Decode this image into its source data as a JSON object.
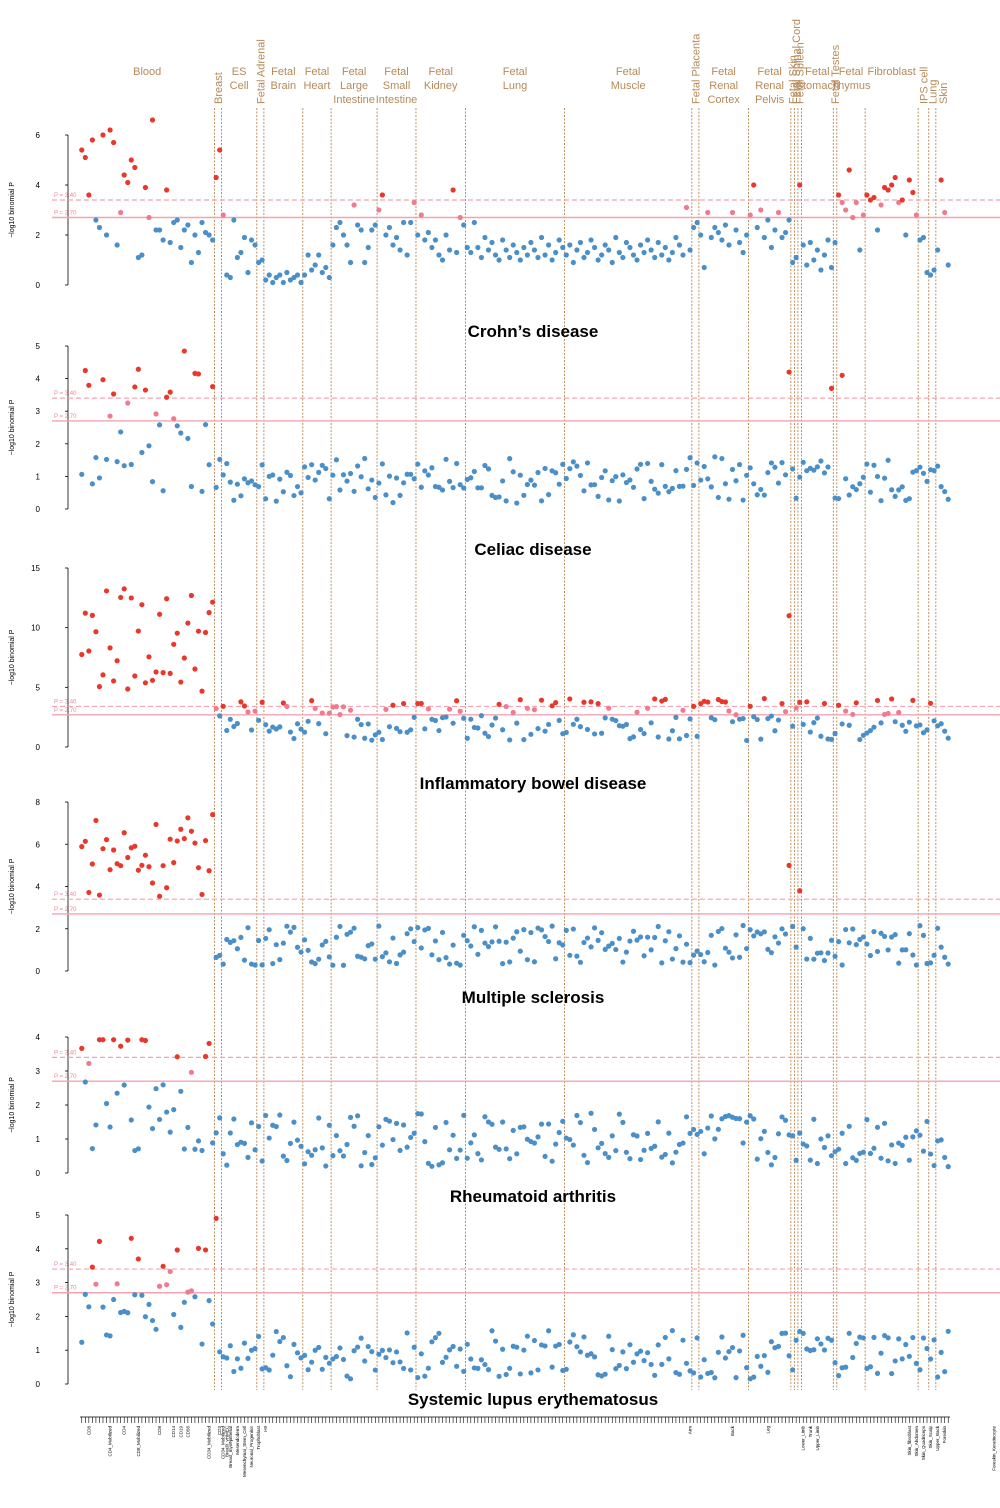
{
  "figure": {
    "y_axis_label": "−log10 binomial P",
    "threshold_labels": [
      "P = 3.40",
      "P = 2.70"
    ],
    "thresholds": [
      3.4,
      2.7
    ],
    "colors": {
      "significant": "#e8382c",
      "suggestive": "#f07a8e",
      "nonsignificant": "#4a8fc8",
      "group_divider": "#b0763a",
      "group_label": "#b58a5a",
      "threshold_line": "#f4a3b0"
    }
  },
  "groups": [
    {
      "label": "Blood",
      "n": 38
    },
    {
      "label": "Breast",
      "n": 2
    },
    {
      "label": "ES Cell",
      "n": 10
    },
    {
      "label": "Fetal Adrenal",
      "n": 2
    },
    {
      "label": "Fetal Brain",
      "n": 11
    },
    {
      "label": "Fetal Heart",
      "n": 8
    },
    {
      "label": "Fetal Large Intestine",
      "n": 13
    },
    {
      "label": "Fetal Small Intestine",
      "n": 11
    },
    {
      "label": "Fetal Kidney",
      "n": 14
    },
    {
      "label": "Fetal Lung",
      "n": 28
    },
    {
      "label": "Fetal Muscle",
      "n": 36
    },
    {
      "label": "Fetal Placenta",
      "n": 2
    },
    {
      "label": "Fetal Renal Cortex",
      "n": 14
    },
    {
      "label": "Fetal Renal Pelvis",
      "n": 12
    },
    {
      "label": "Fetal Skin",
      "n": 1
    },
    {
      "label": "Fetal Spinal Cord",
      "n": 1
    },
    {
      "label": "Fetal Spleen",
      "n": 1
    },
    {
      "label": "Fetal Stomach",
      "n": 9
    },
    {
      "label": "Fetal Testes",
      "n": 1
    },
    {
      "label": "Fetal Thymus",
      "n": 8
    },
    {
      "label": "Fibroblast",
      "n": 15
    },
    {
      "label": "IPS cell",
      "n": 3
    },
    {
      "label": "Lung",
      "n": 2
    },
    {
      "label": "Skin",
      "n": 4
    }
  ],
  "x_tick_labels": [
    "CD8",
    "CD4_Mobilized",
    "CD4",
    "CD8_Mobilized",
    "CD8",
    "CD14",
    "CD19",
    "CD56",
    "CD34_Mobilized",
    "CD3",
    "CD34_Mobilized",
    "Breast_vHMEC",
    "Breast_myoepithelial",
    "Mesendoderm",
    "Mesenchymal_Stem_Cell",
    "Neuronal_Progenitor",
    "Trophoblast",
    "H9",
    "Arm",
    "Back",
    "Leg",
    "Lower_Limb",
    "Trunk",
    "Upper_Limb",
    "Skin_fibroblast",
    "Skin_Abdomen",
    "Skin_Quadriceps",
    "Skin_Scalp",
    "Upper_Back",
    "Foreskin",
    "Foreskin_Keratinocyte",
    "Foreskin_Melanocyte"
  ],
  "panels": [
    {
      "title": "",
      "ymax": 6,
      "yticks": [
        0,
        2,
        4,
        6
      ]
    },
    {
      "title": "Crohn’s disease",
      "ymax": 5,
      "yticks": [
        0,
        1,
        2,
        3,
        4,
        5
      ]
    },
    {
      "title": "Celiac disease",
      "ymax": 15,
      "yticks": [
        0,
        5,
        10,
        15
      ]
    },
    {
      "title": "Inflammatory bowel disease",
      "ymax": 8,
      "yticks": [
        0,
        2,
        4,
        6,
        8
      ]
    },
    {
      "title": "Multiple sclerosis",
      "ymax": 4,
      "yticks": [
        0,
        1,
        2,
        3,
        4
      ]
    },
    {
      "title": "Rheumatoid arthritis",
      "ymax": 5,
      "yticks": [
        0,
        1,
        2,
        3,
        4,
        5
      ]
    }
  ],
  "footer_title": "Systemic lupus erythematosus",
  "chart_data": {
    "type": "scatter",
    "description": "Per-tissue-annotation enrichment (−log10 binomial P) for immune disease GWAS loci across 266 tissue/cell annotations grouped by tissue",
    "x_axis": "tissue annotation index grouped by tissue",
    "y_axis": "−log10 binomial P",
    "thresholds": [
      3.4,
      2.7
    ],
    "series": [
      {
        "panel": 0,
        "values": [
          5.4,
          5.1,
          3.6,
          5.8,
          2.6,
          2.3,
          6.0,
          2.0,
          6.2,
          5.7,
          1.6,
          2.9,
          4.4,
          4.1,
          5.0,
          4.7,
          1.1,
          1.2,
          3.9,
          2.7,
          6.6,
          2.2,
          2.2,
          1.8,
          3.8,
          1.7,
          2.5,
          2.6,
          1.5,
          2.2,
          2.4,
          0.9,
          2.0,
          1.3,
          2.5,
          2.1,
          2.0,
          1.8,
          4.3,
          5.4,
          2.8,
          0.4,
          0.3,
          2.6,
          1.1,
          1.3,
          1.9,
          0.5,
          1.8,
          1.6,
          0.9,
          1.0,
          0.2,
          0.4,
          0.1,
          0.3,
          0.4,
          0.1,
          0.5,
          0.2,
          0.3,
          0.4,
          0.1,
          0.4,
          1.2,
          0.6,
          0.8,
          1.2,
          0.5,
          0.7,
          0.3,
          1.6,
          2.3,
          2.5,
          2.0,
          1.6,
          0.9,
          3.2,
          2.4,
          2.2,
          0.9,
          1.5,
          2.2,
          2.4,
          3.0,
          3.6,
          2.0,
          2.3,
          1.6,
          1.9,
          1.4,
          2.5,
          1.2,
          2.5,
          3.3,
          2.0,
          2.8,
          1.8,
          2.1,
          1.5,
          1.8,
          1.2,
          1.0,
          2.0,
          1.4,
          3.8,
          1.3,
          2.7,
          2.4,
          1.5,
          1.3,
          2.5,
          1.5,
          1.1,
          1.9,
          1.4,
          1.7,
          1.2,
          1.0,
          1.8,
          1.4,
          1.1,
          1.6,
          1.3,
          1.0,
          1.5,
          1.2,
          1.7,
          1.4,
          1.1,
          1.9,
          1.2,
          1.6,
          1.0,
          1.3,
          1.8,
          1.5,
          1.2,
          1.6,
          0.9,
          1.4,
          1.7,
          1.1,
          1.3,
          1.8,
          1.5,
          1.0,
          1.2,
          1.6,
          1.4,
          0.9,
          1.9,
          1.3,
          1.1,
          1.7,
          1.5,
          1.2,
          1.0,
          1.6,
          1.3,
          1.8,
          1.4,
          1.1,
          1.7,
          1.2,
          1.5,
          1.0,
          1.3,
          1.9,
          1.6,
          1.2,
          3.1,
          1.4,
          2.3,
          2.5,
          2.0,
          0.7,
          2.9,
          1.9,
          2.3,
          2.1,
          1.8,
          2.4,
          1.6,
          2.9,
          2.2,
          1.7,
          1.3,
          2.0,
          2.8,
          4.0,
          2.3,
          3.0,
          1.9,
          2.6,
          1.5,
          2.2,
          2.9,
          1.9,
          2.1,
          2.6,
          0.9,
          1.1,
          4.0,
          1.6,
          0.8,
          1.7,
          1.0,
          1.4,
          0.6,
          1.2,
          1.8,
          0.7,
          1.7,
          3.6,
          3.3,
          3.0,
          4.6,
          2.7,
          3.3,
          1.4,
          2.8,
          3.6,
          3.4,
          3.5,
          2.2,
          3.2,
          3.9,
          3.8,
          4.0,
          4.3,
          3.3,
          3.4,
          2.0,
          4.2,
          3.7,
          2.8,
          1.8,
          1.9,
          0.5,
          0.4,
          0.6,
          1.4,
          4.2,
          2.9,
          0.8
        ]
      }
    ]
  }
}
